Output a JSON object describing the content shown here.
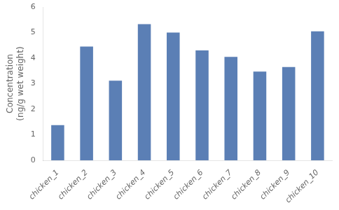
{
  "chart_data": {
    "type": "bar",
    "categories": [
      "chicken_1",
      "chicken_2",
      "chicken_3",
      "chicken_4",
      "chicken_5",
      "chicken_6",
      "chicken_7",
      "chicken_8",
      "chicken_9",
      "chicken_10"
    ],
    "values": [
      1.38,
      4.45,
      3.12,
      5.33,
      5.0,
      4.3,
      4.05,
      3.47,
      3.65,
      5.05
    ],
    "color": "#5b7fb5",
    "ylabel": "Concentration\n(ng/g wet weight)",
    "ylim": [
      0,
      6
    ],
    "yticks": [
      0,
      1,
      2,
      3,
      4,
      5,
      6
    ],
    "grid": false
  }
}
